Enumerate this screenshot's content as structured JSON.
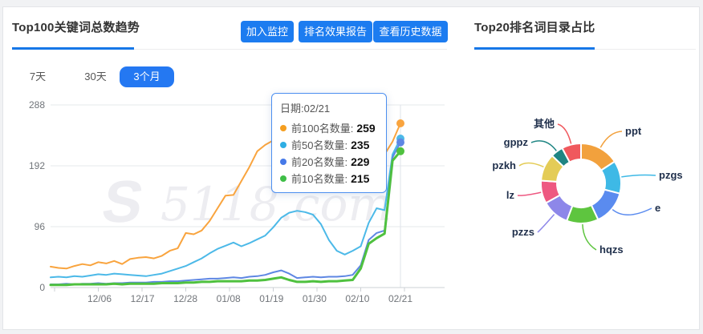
{
  "page": {
    "watermark": "5118.com"
  },
  "left_panel": {
    "title": "Top100关键词总数趋势",
    "buttons": [
      {
        "label": "加入监控"
      },
      {
        "label": "排名效果报告"
      },
      {
        "label": "查看历史数据"
      }
    ],
    "tabs": [
      {
        "label": "7天",
        "active": false
      },
      {
        "label": "30天",
        "active": false
      },
      {
        "label": "3个月",
        "active": true
      }
    ],
    "accent_color": "#1c7cf0"
  },
  "right_panel": {
    "title": "Top20排名词目录占比"
  },
  "tooltip": {
    "date_label": "日期:02/21",
    "rows": [
      {
        "label": "前100名数量:",
        "value": "259",
        "color": "#f59e1f"
      },
      {
        "label": "前50名数量:",
        "value": "235",
        "color": "#2eaee4"
      },
      {
        "label": "前20名数量:",
        "value": "229",
        "color": "#4679e8"
      },
      {
        "label": "前10名数量:",
        "value": "215",
        "color": "#3fbe47"
      }
    ]
  },
  "chart_data": [
    {
      "type": "line",
      "title": "Top100关键词总数趋势",
      "x_tick_labels": [
        "12/06",
        "12/17",
        "12/28",
        "01/08",
        "01/19",
        "01/30",
        "02/10",
        "02/21"
      ],
      "y_ticks": [
        0,
        96,
        192,
        288
      ],
      "ylim": [
        0,
        288
      ],
      "grid": true,
      "hover_date": "02/21",
      "series": [
        {
          "name": "前100名数量",
          "color": "#f9a43e",
          "end_value": 259,
          "values": [
            33,
            31,
            30,
            34,
            37,
            35,
            40,
            38,
            42,
            37,
            45,
            47,
            48,
            46,
            50,
            58,
            62,
            86,
            84,
            90,
            105,
            125,
            145,
            146,
            168,
            190,
            215,
            225,
            232,
            238,
            245,
            242,
            235,
            228,
            220,
            212,
            205,
            200,
            197,
            195,
            196,
            200,
            210,
            230,
            259
          ]
        },
        {
          "name": "前50名数量",
          "color": "#4cb9e8",
          "end_value": 235,
          "values": [
            16,
            17,
            16,
            18,
            17,
            19,
            21,
            20,
            22,
            21,
            20,
            19,
            18,
            20,
            22,
            26,
            30,
            34,
            40,
            46,
            54,
            61,
            66,
            71,
            65,
            70,
            76,
            82,
            95,
            110,
            118,
            121,
            119,
            115,
            100,
            75,
            58,
            52,
            58,
            65,
            102,
            125,
            122,
            210,
            235
          ]
        },
        {
          "name": "前20名数量",
          "color": "#5e87e3",
          "end_value": 229,
          "values": [
            5,
            5,
            6,
            5,
            6,
            6,
            7,
            6,
            7,
            7,
            8,
            8,
            8,
            9,
            9,
            10,
            10,
            11,
            12,
            13,
            14,
            14,
            15,
            16,
            15,
            17,
            18,
            20,
            24,
            27,
            22,
            15,
            16,
            17,
            16,
            17,
            17,
            18,
            20,
            35,
            75,
            86,
            90,
            205,
            229
          ]
        },
        {
          "name": "前10名数量",
          "color": "#4fc13f",
          "end_value": 215,
          "values": [
            4,
            4,
            4,
            5,
            5,
            5,
            5,
            5,
            6,
            5,
            6,
            6,
            6,
            6,
            7,
            7,
            7,
            8,
            8,
            9,
            9,
            10,
            10,
            10,
            10,
            11,
            11,
            12,
            14,
            16,
            12,
            9,
            9,
            10,
            9,
            10,
            10,
            11,
            12,
            30,
            69,
            78,
            85,
            200,
            215
          ]
        }
      ]
    },
    {
      "type": "donut",
      "title": "Top20排名词目录占比",
      "slices": [
        {
          "label": "ppt",
          "percent": 15.8,
          "color": "#f2a13d"
        },
        {
          "label": "pzgs",
          "percent": 13.3,
          "color": "#3eb9e6"
        },
        {
          "label": "e",
          "percent": 13.9,
          "color": "#5a8bef"
        },
        {
          "label": "hqzs",
          "percent": 12.8,
          "color": "#5ec53f"
        },
        {
          "label": "pzzs",
          "percent": 11.1,
          "color": "#8d87e9"
        },
        {
          "label": "lz",
          "percent": 9.2,
          "color": "#ee5881"
        },
        {
          "label": "pzkh",
          "percent": 11.1,
          "color": "#e4cc56"
        },
        {
          "label": "gppz",
          "percent": 5.0,
          "color": "#1f8583"
        },
        {
          "label": "其他",
          "percent": 7.8,
          "color": "#f0585d"
        }
      ]
    }
  ]
}
